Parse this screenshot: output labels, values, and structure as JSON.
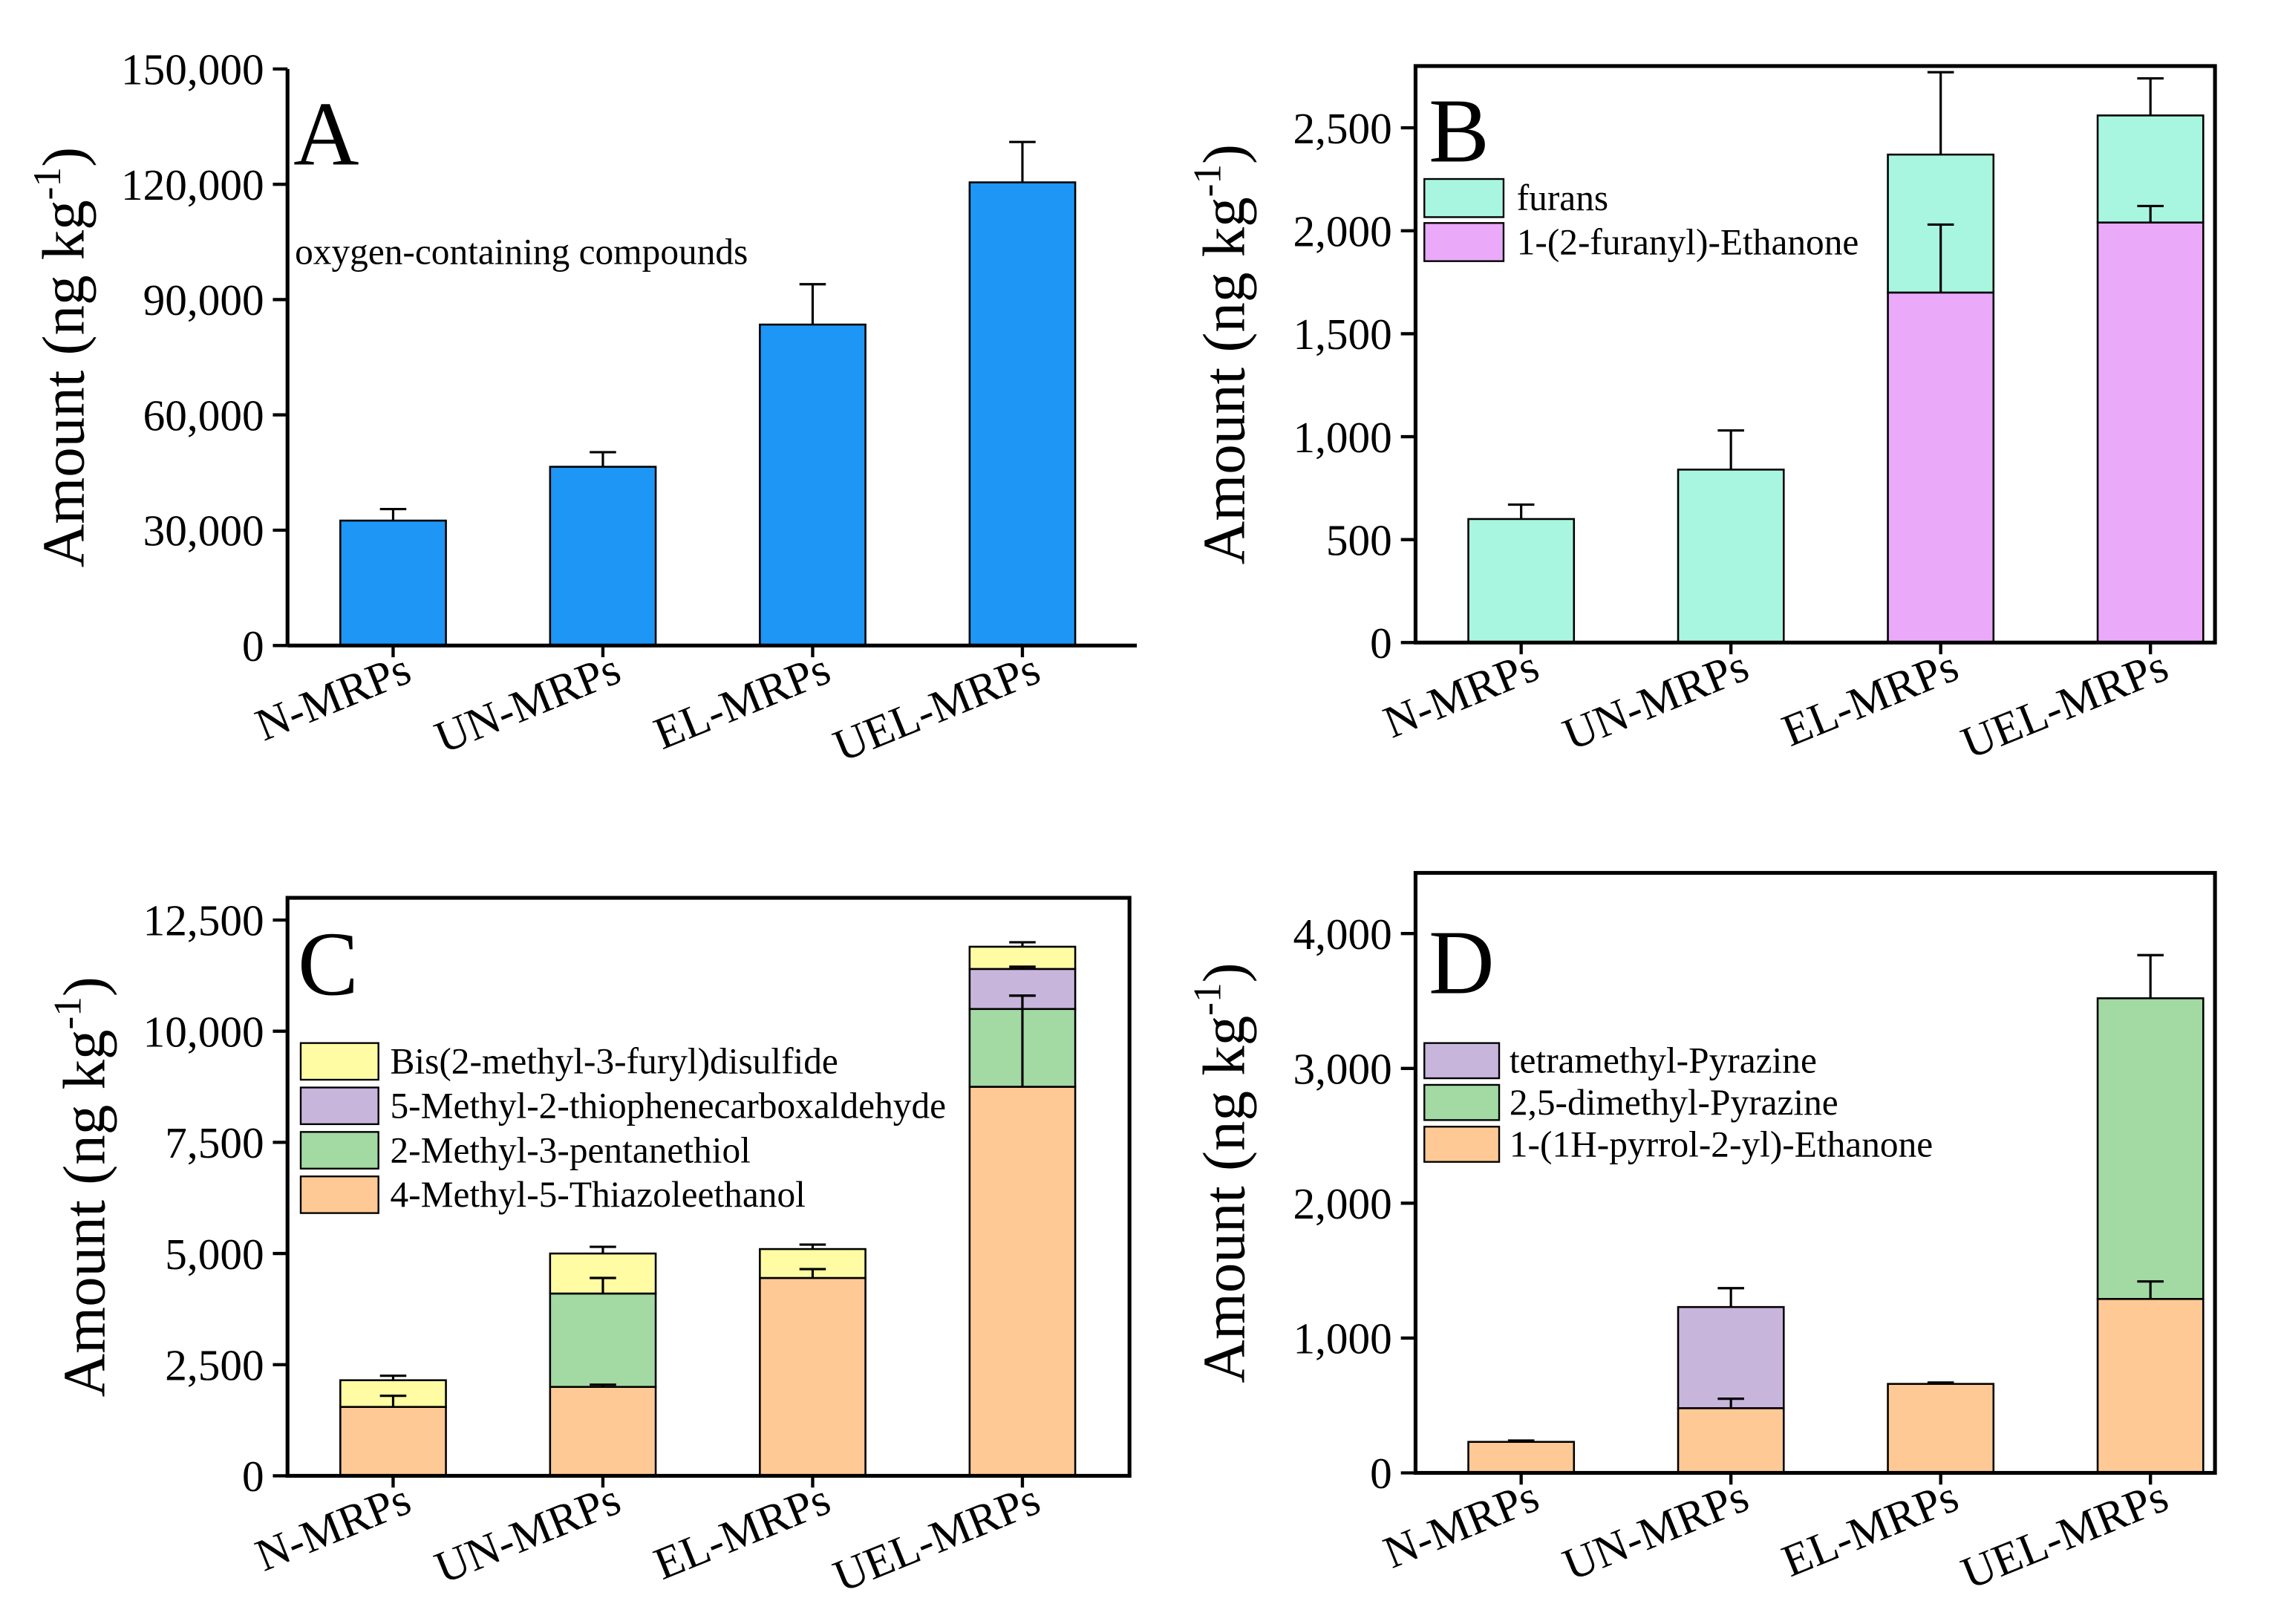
{
  "chart_data": [
    {
      "type": "bar",
      "stacked": false,
      "panel_label": "A",
      "annotation": "oxygen-containing compounds",
      "categories": [
        "N-MRPs",
        "UN-MRPs",
        "EL-MRPs",
        "UEL-MRPs"
      ],
      "series": [
        {
          "color": "#1e96f6",
          "values": [
            32500,
            46500,
            83500,
            120500
          ],
          "errors": [
            3000,
            3800,
            10500,
            10500
          ]
        }
      ],
      "ylim": [
        0,
        150000
      ],
      "yticks": [
        0,
        30000,
        60000,
        90000,
        120000,
        150000
      ],
      "ytick_labels": [
        "0",
        "30,000",
        "60,000",
        "90,000",
        "120,000",
        "150,000"
      ],
      "ylabel": {
        "main": "Amount (ng kg",
        "sup": "-1",
        "close": ")"
      },
      "grid": false
    },
    {
      "type": "bar",
      "stacked": true,
      "panel_label": "B",
      "categories": [
        "N-MRPs",
        "UN-MRPs",
        "EL-MRPs",
        "UEL-MRPs"
      ],
      "series": [
        {
          "name": "1-(2-furanyl)-Ethanone",
          "color": "#eaa9f9",
          "values": [
            0,
            0,
            1700,
            2040
          ],
          "errors": [
            0,
            0,
            330,
            80
          ]
        },
        {
          "name": "furans",
          "color": "#a9f6e0",
          "values": [
            600,
            840,
            670,
            520
          ],
          "errors": [
            70,
            190,
            400,
            180
          ]
        }
      ],
      "legend_order": [
        1,
        0
      ],
      "ylim": [
        0,
        2800
      ],
      "yticks": [
        0,
        500,
        1000,
        1500,
        2000,
        2500
      ],
      "ytick_labels": [
        "0",
        "500",
        "1,000",
        "1,500",
        "2,000",
        "2,500"
      ],
      "ylabel": {
        "main": "Amount (ng kg",
        "sup": "-1",
        "close": ")"
      },
      "grid": false
    },
    {
      "type": "bar",
      "stacked": true,
      "panel_label": "C",
      "categories": [
        "N-MRPs",
        "UN-MRPs",
        "EL-MRPs",
        "UEL-MRPs"
      ],
      "series": [
        {
          "name": "4-Methyl-5-Thiazoleethanol",
          "color": "#fec995",
          "values": [
            1550,
            2000,
            4450,
            8750
          ],
          "errors": [
            250,
            50,
            200,
            2050
          ]
        },
        {
          "name": "2-Methyl-3-pentanethiol",
          "color": "#a3d9a3",
          "values": [
            0,
            2100,
            0,
            1750
          ],
          "errors": [
            0,
            350,
            0,
            300
          ]
        },
        {
          "name": "5-Methyl-2-thiophenecarboxaldehyde",
          "color": "#c8b5dc",
          "values": [
            0,
            0,
            0,
            900
          ],
          "errors": [
            0,
            0,
            0,
            50
          ]
        },
        {
          "name": "Bis(2-methyl-3-furyl)disulfide",
          "color": "#fffca3",
          "values": [
            600,
            900,
            650,
            500
          ],
          "errors": [
            100,
            150,
            100,
            100
          ]
        }
      ],
      "legend_order": [
        3,
        2,
        1,
        0
      ],
      "ylim": [
        0,
        13000
      ],
      "yticks": [
        0,
        2500,
        5000,
        7500,
        10000,
        12500
      ],
      "ytick_labels": [
        "0",
        "2,500",
        "5,000",
        "7,500",
        "10,000",
        "12,500"
      ],
      "ylabel": {
        "main": "Amount (ng kg",
        "sup": "-1",
        "close": ")"
      },
      "grid": false
    },
    {
      "type": "bar",
      "stacked": true,
      "panel_label": "D",
      "categories": [
        "N-MRPs",
        "UN-MRPs",
        "EL-MRPs",
        "UEL-MRPs"
      ],
      "series": [
        {
          "name": "1-(1H-pyrrol-2-yl)-Ethanone",
          "color": "#fec995",
          "values": [
            230,
            480,
            660,
            1290
          ],
          "errors": [
            10,
            70,
            10,
            130
          ]
        },
        {
          "name": "2,5-dimethyl-Pyrazine",
          "color": "#a3d9a3",
          "values": [
            0,
            0,
            0,
            2230
          ],
          "errors": [
            0,
            0,
            0,
            320
          ]
        },
        {
          "name": "tetramethyl-Pyrazine",
          "color": "#c8b5dc",
          "values": [
            0,
            750,
            0,
            0
          ],
          "errors": [
            0,
            140,
            0,
            0
          ]
        }
      ],
      "legend_order": [
        2,
        1,
        0
      ],
      "ylim": [
        0,
        4450
      ],
      "yticks": [
        0,
        1000,
        2000,
        3000,
        4000
      ],
      "ytick_labels": [
        "0",
        "1,000",
        "2,000",
        "3,000",
        "4,000"
      ],
      "ylabel": {
        "main": "Amount (ng kg",
        "sup": "-1",
        "close": ")"
      },
      "grid": false
    }
  ]
}
